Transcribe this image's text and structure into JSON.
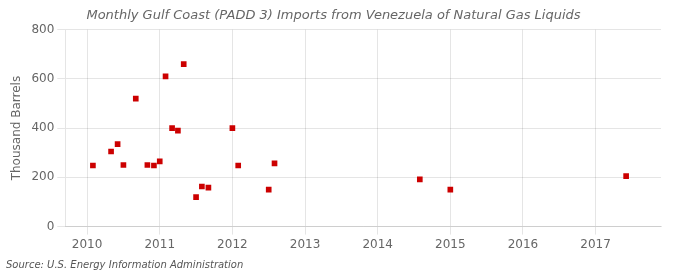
{
  "chart_data": {
    "type": "scatter",
    "title": "Monthly Gulf Coast (PADD 3) Imports from Venezuela of Natural Gas Liquids",
    "ylabel": "Thousand Barrels",
    "source": "Source: U.S. Energy Information Administration",
    "x": [
      2010.08,
      2010.33,
      2010.42,
      2010.5,
      2010.67,
      2010.83,
      2010.92,
      2011.0,
      2011.08,
      2011.17,
      2011.25,
      2011.33,
      2011.5,
      2011.58,
      2011.67,
      2012.0,
      2012.08,
      2012.5,
      2012.58,
      2014.58,
      2015.0,
      2017.42
    ],
    "values": [
      248,
      305,
      335,
      250,
      520,
      250,
      248,
      265,
      610,
      400,
      390,
      660,
      120,
      163,
      158,
      400,
      248,
      150,
      257,
      192,
      150,
      205
    ],
    "color": "#cc0000",
    "marker": "square",
    "xlim": [
      2009.7,
      2017.9
    ],
    "xticks": [
      2010,
      2011,
      2012,
      2013,
      2014,
      2015,
      2016,
      2017
    ],
    "ylim": [
      0,
      800
    ],
    "yticks": [
      0,
      200,
      400,
      600,
      800
    ],
    "grid": true
  }
}
